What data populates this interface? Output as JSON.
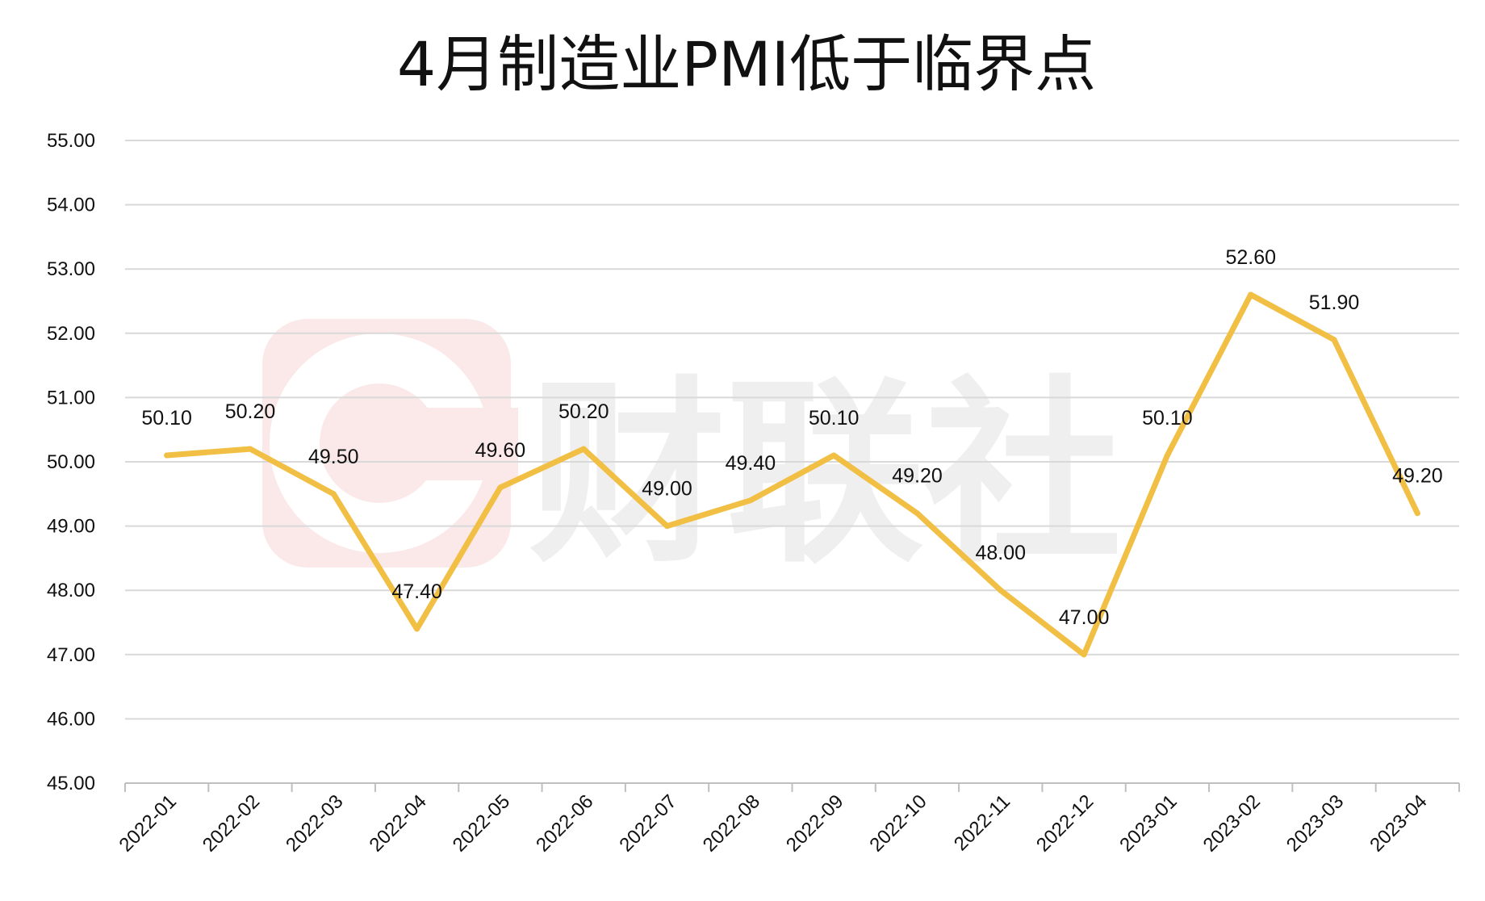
{
  "chart_data": {
    "type": "line",
    "title": "4月制造业PMI低于临界点",
    "xlabel": "",
    "ylabel": "",
    "categories": [
      "2022-01",
      "2022-02",
      "2022-03",
      "2022-04",
      "2022-05",
      "2022-06",
      "2022-07",
      "2022-08",
      "2022-09",
      "2022-10",
      "2022-11",
      "2022-12",
      "2023-01",
      "2023-02",
      "2023-03",
      "2023-04"
    ],
    "series": [
      {
        "values": [
          50.1,
          50.2,
          49.5,
          47.4,
          49.6,
          50.2,
          49.0,
          49.4,
          50.1,
          49.2,
          48.0,
          47.0,
          50.1,
          52.6,
          51.9,
          49.2
        ],
        "data_labels": [
          "50.10",
          "50.20",
          "49.50",
          "47.40",
          "49.60",
          "50.20",
          "49.00",
          "49.40",
          "50.10",
          "49.20",
          "48.00",
          "47.00",
          "50.10",
          "52.60",
          "51.90",
          "49.20"
        ],
        "color": "#f2bf45"
      }
    ],
    "ylim": [
      45,
      55
    ],
    "yticks": [
      "45.00",
      "46.00",
      "47.00",
      "48.00",
      "49.00",
      "50.00",
      "51.00",
      "52.00",
      "53.00",
      "54.00",
      "55.00"
    ],
    "grid": true,
    "legend": "none",
    "colors": {
      "line": "#f2bf45",
      "grid": "#d9d9d9",
      "axis": "#bfbfbf",
      "watermark_tile": "#fbe9e9",
      "watermark_glyph": "#ffffff",
      "watermark_text": "#efefef"
    },
    "watermark": {
      "text": "财联社",
      "logo": "cls-logo-icon"
    }
  }
}
